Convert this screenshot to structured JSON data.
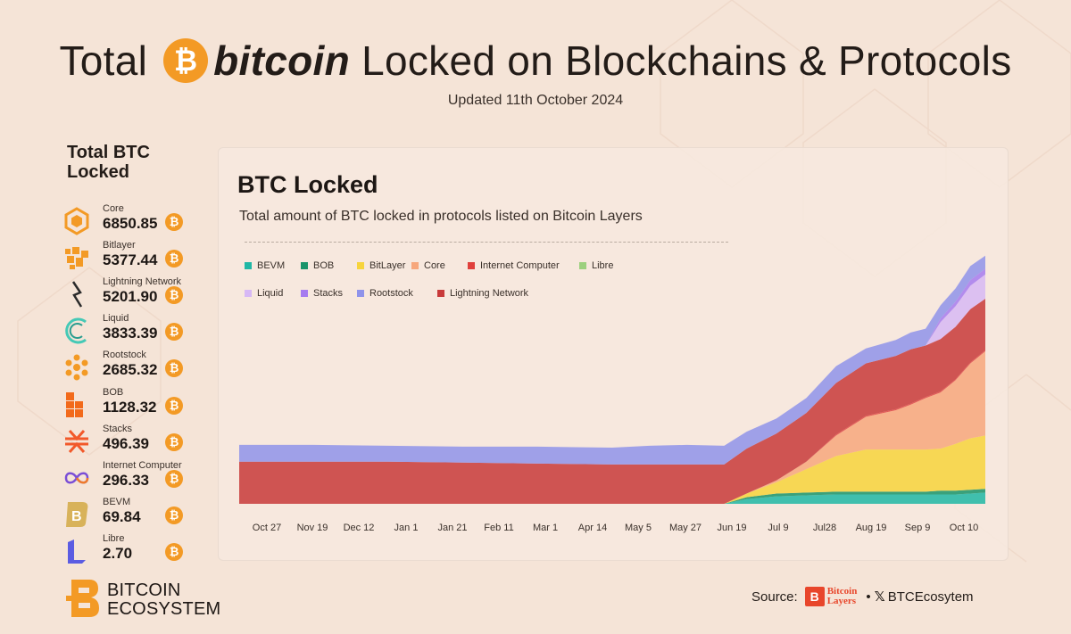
{
  "title": {
    "prefix": "Total",
    "brand_word": "bitcoin",
    "suffix": " Locked on Blockchains & Protocols",
    "coin_symbol": "₿"
  },
  "updated": "Updated 11th October 2024",
  "left_panel": {
    "heading": "Total BTC Locked",
    "protocols": [
      {
        "name": "Core",
        "value": "6850.85",
        "icon": "core-hexagon-icon",
        "color": "#f39a25"
      },
      {
        "name": "Bitlayer",
        "value": "5377.44",
        "icon": "bitlayer-icon",
        "color": "#f39a25"
      },
      {
        "name": "Lightning Network",
        "value": "5201.90",
        "icon": "lightning-icon",
        "color": "#2a2a2a"
      },
      {
        "name": "Liquid",
        "value": "3833.39",
        "icon": "liquid-icon",
        "color": "#45c9b6"
      },
      {
        "name": "Rootstock",
        "value": "2685.32",
        "icon": "rootstock-icon",
        "color": "#f39a25"
      },
      {
        "name": "BOB",
        "value": "1128.32",
        "icon": "bob-icon",
        "color": "#f26a1b"
      },
      {
        "name": "Stacks",
        "value": "496.39",
        "icon": "stacks-icon",
        "color": "#f2592a"
      },
      {
        "name": "Internet Computer",
        "value": "296.33",
        "icon": "infinity-icon",
        "color": "#7a4ed6"
      },
      {
        "name": "BEVM",
        "value": "69.84",
        "icon": "bevm-icon",
        "color": "#d8b25a"
      },
      {
        "name": "Libre",
        "value": "2.70",
        "icon": "libre-icon",
        "color": "#5b5ce2"
      }
    ]
  },
  "chart_data": {
    "type": "area",
    "title": "BTC Locked",
    "subtitle": "Total amount of BTC locked in protocols listed on Bitcoin Layers",
    "stacked": true,
    "x_ticks": [
      "Oct 27",
      "Nov 19",
      "Dec 12",
      "Jan 1",
      "Jan 21",
      "Feb 11",
      "Mar 1",
      "Apr 14",
      "May 5",
      "May 27",
      "Jun 19",
      "Jul 9",
      "Jul28",
      "Aug 19",
      "Sep 9",
      "Oct 10"
    ],
    "y_axis_shown": false,
    "grid": false,
    "legend": [
      {
        "name": "BEVM",
        "color": "#20b7a5"
      },
      {
        "name": "BOB",
        "color": "#19946a"
      },
      {
        "name": "BitLayer",
        "color": "#f7d43c"
      },
      {
        "name": "Core",
        "color": "#f7a77c"
      },
      {
        "name": "Internet Computer",
        "color": "#e0403c"
      },
      {
        "name": "Libre",
        "color": "#9cd07e"
      },
      {
        "name": "Liquid",
        "color": "#d7b8f5"
      },
      {
        "name": "Stacks",
        "color": "#a67bf0"
      },
      {
        "name": "Rootstock",
        "color": "#8f93ea"
      },
      {
        "name": "Lightning Network",
        "color": "#c83a3a"
      }
    ],
    "legend_position": "top-left",
    "x": [
      0,
      0.1,
      0.2,
      0.3,
      0.4,
      0.5,
      0.55,
      0.6,
      0.65,
      0.68,
      0.72,
      0.76,
      0.8,
      0.84,
      0.88,
      0.9,
      0.92,
      0.94,
      0.96,
      0.98,
      1.0
    ],
    "series": [
      {
        "name": "BEVM",
        "values": [
          0,
          0,
          0,
          0,
          0,
          0,
          0,
          0,
          0,
          5,
          8,
          9,
          10,
          10,
          10,
          10,
          10,
          10,
          10,
          11,
          12
        ]
      },
      {
        "name": "BOB",
        "values": [
          0,
          0,
          0,
          0,
          0,
          0,
          0,
          0,
          0,
          2,
          3,
          3,
          3,
          3,
          3,
          3,
          3,
          4,
          4,
          4,
          4
        ]
      },
      {
        "name": "BitLayer",
        "values": [
          0,
          0,
          0,
          0,
          0,
          0,
          0,
          0,
          0,
          4,
          12,
          25,
          38,
          45,
          45,
          45,
          45,
          45,
          50,
          55,
          57
        ]
      },
      {
        "name": "Core",
        "values": [
          0,
          0,
          0,
          0,
          0,
          0,
          0,
          0,
          0,
          0,
          2,
          8,
          22,
          35,
          42,
          48,
          55,
          60,
          68,
          80,
          90
        ]
      },
      {
        "name": "Internet Computer",
        "values": [
          0,
          0,
          0,
          0,
          0,
          0,
          0,
          0,
          0,
          0,
          0,
          0,
          1,
          1,
          1,
          1,
          1,
          1,
          1,
          1,
          1
        ]
      },
      {
        "name": "Libre",
        "values": [
          0,
          0,
          0,
          0,
          0,
          0,
          0,
          0,
          0,
          0,
          0,
          0,
          0,
          0,
          0,
          0,
          0,
          0,
          0,
          0,
          0
        ]
      },
      {
        "name": "Lightning Network",
        "values": [
          45,
          45,
          45,
          44,
          43,
          42,
          42,
          42,
          42,
          48,
          50,
          52,
          55,
          56,
          57,
          58,
          55,
          56,
          56,
          57,
          55
        ]
      },
      {
        "name": "Liquid",
        "values": [
          0,
          0,
          0,
          0,
          0,
          0,
          0,
          0,
          0,
          0,
          0,
          0,
          0,
          0,
          0,
          0,
          0,
          18,
          22,
          25,
          26
        ]
      },
      {
        "name": "Stacks",
        "values": [
          0,
          0,
          0,
          0,
          0,
          0,
          0,
          0,
          0,
          0,
          0,
          0,
          0,
          0,
          0,
          0,
          0,
          4,
          5,
          6,
          6
        ]
      },
      {
        "name": "Rootstock",
        "values": [
          18,
          18,
          17,
          17,
          18,
          18,
          20,
          21,
          20,
          18,
          16,
          16,
          18,
          16,
          17,
          18,
          18,
          14,
          14,
          15,
          14
        ]
      }
    ]
  },
  "brand": {
    "line1": "BITCOIN",
    "line2": "ECOSYSTEM"
  },
  "source": {
    "label": "Source:",
    "logo_mark": "B",
    "logo_line1": "Bitcoin",
    "logo_line2": "Layers",
    "dot": "•",
    "x_glyph": "𝕏",
    "handle": "BTCEcosytem"
  }
}
